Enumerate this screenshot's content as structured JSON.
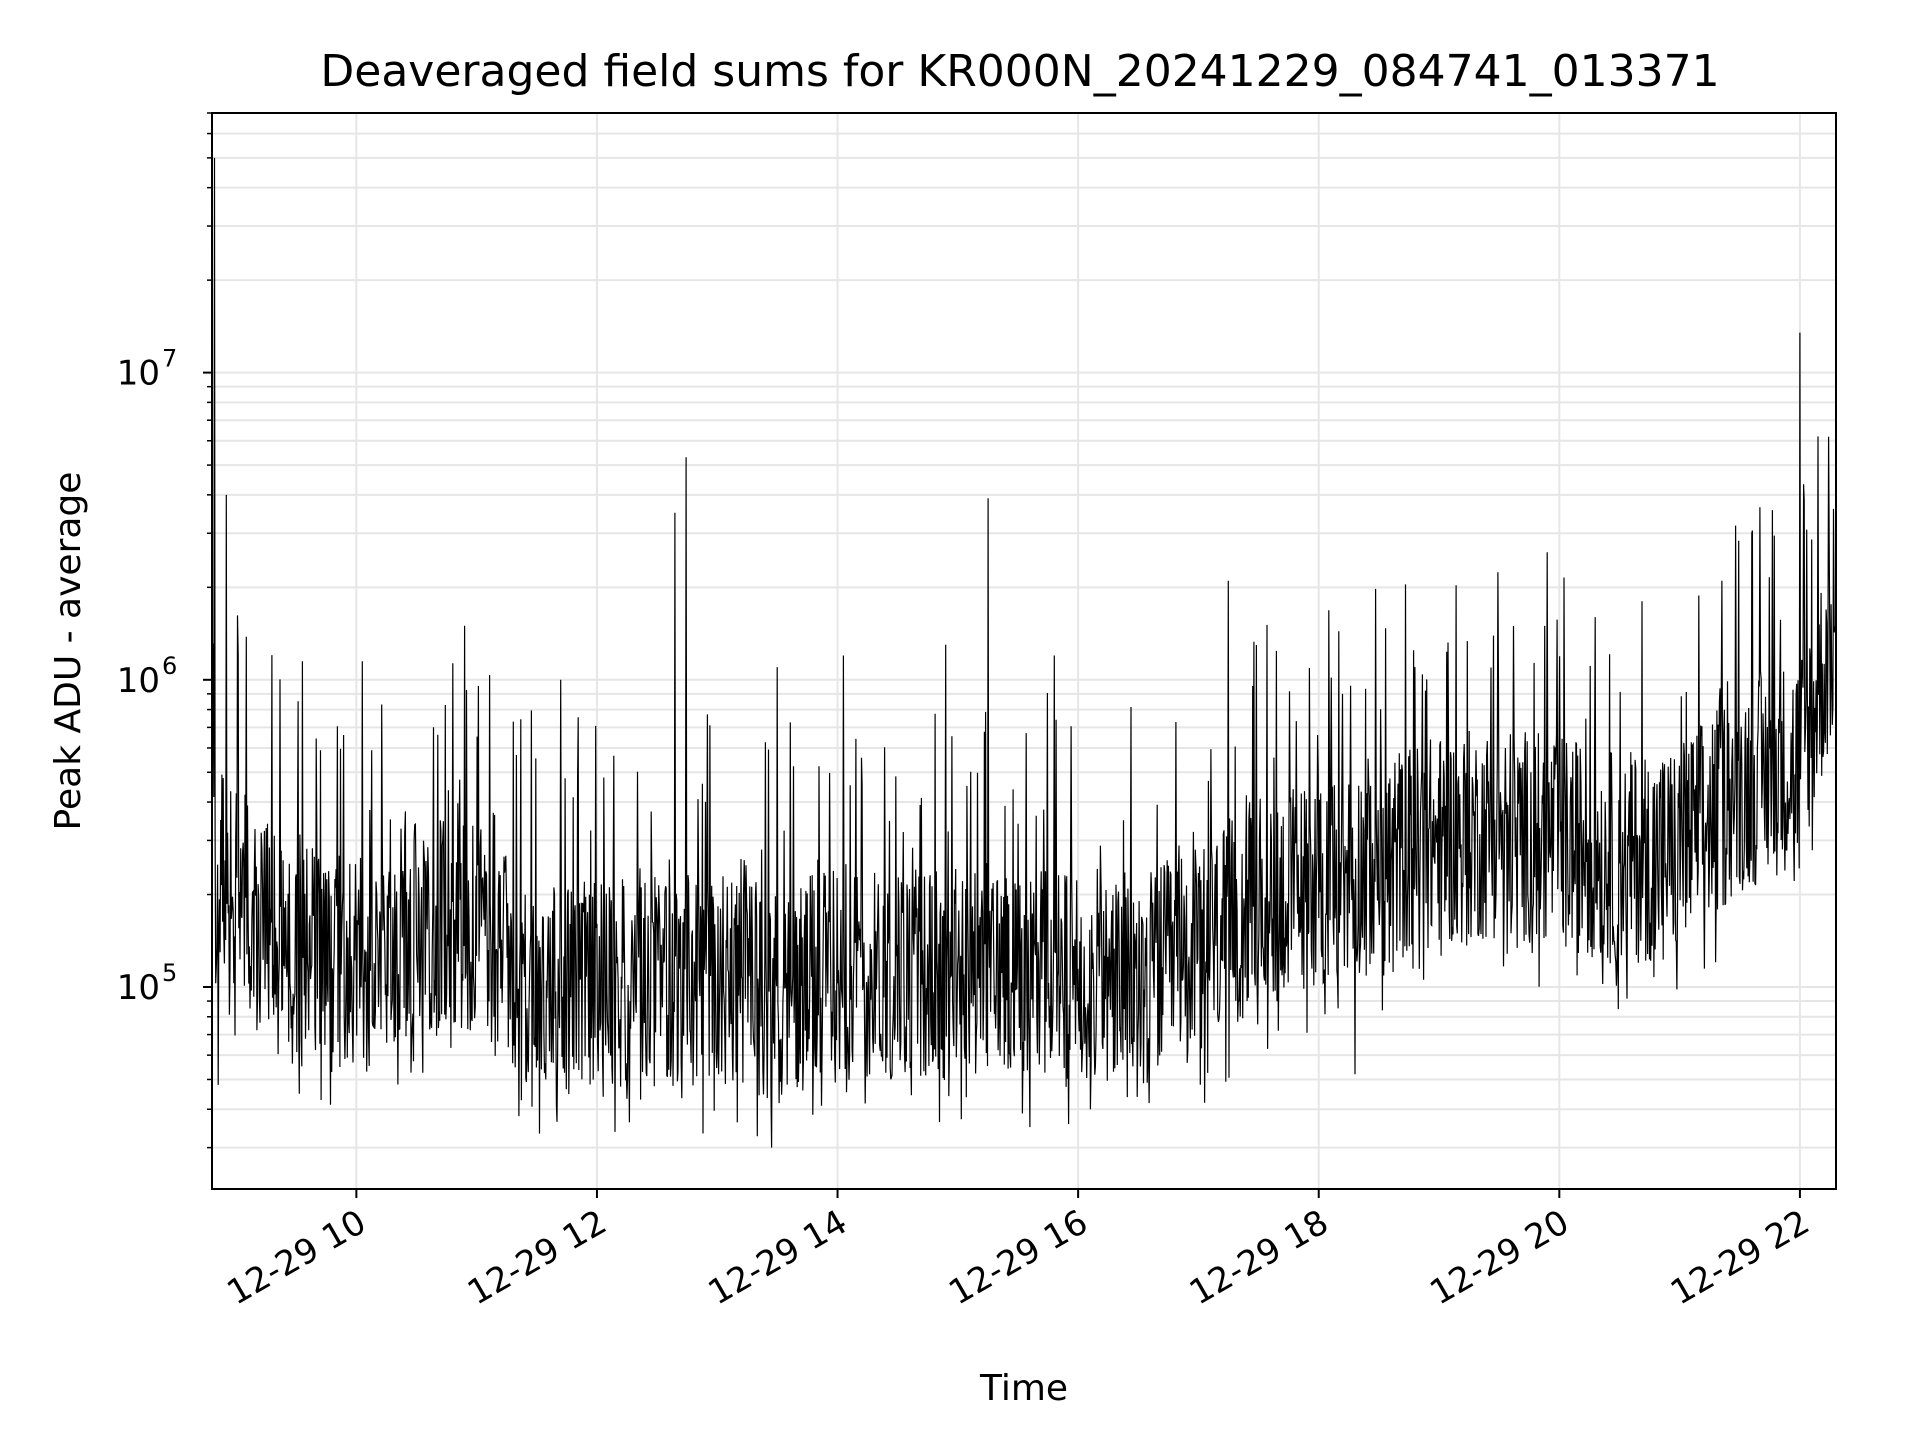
{
  "chart_data": {
    "type": "line",
    "title": "Deaveraged field sums for KR000N_20241229_084741_013371",
    "xlabel": "Time",
    "ylabel": "Peak ADU - average",
    "yscale": "log",
    "xlim_hours": [
      8.8,
      22.3
    ],
    "ylim": [
      22000,
      70000000
    ],
    "grid": true,
    "x_ticks": [
      {
        "hour": 10,
        "label": "12-29 10"
      },
      {
        "hour": 12,
        "label": "12-29 12"
      },
      {
        "hour": 14,
        "label": "12-29 14"
      },
      {
        "hour": 16,
        "label": "12-29 16"
      },
      {
        "hour": 18,
        "label": "12-29 18"
      },
      {
        "hour": 20,
        "label": "12-29 20"
      },
      {
        "hour": 22,
        "label": "12-29 22"
      }
    ],
    "y_ticks": [
      {
        "value": 100000,
        "base": "10",
        "exp": "5"
      },
      {
        "value": 1000000,
        "base": "10",
        "exp": "6"
      },
      {
        "value": 10000000,
        "base": "10",
        "exp": "7"
      }
    ],
    "series": [
      {
        "name": "Deaveraged field sums",
        "color": "#000000",
        "baseline_hours": [
          8.8,
          9.5,
          10.0,
          10.5,
          11.0,
          11.5,
          12.0,
          13.0,
          13.5,
          14.0,
          15.0,
          15.5,
          16.0,
          16.5,
          17.0,
          17.5,
          18.0,
          18.5,
          19.0,
          19.5,
          20.0,
          20.5,
          21.0,
          21.5,
          22.0,
          22.3
        ],
        "baseline_values": [
          250000,
          130000,
          120000,
          160000,
          150000,
          100000,
          100000,
          105000,
          95000,
          110000,
          110000,
          120000,
          110000,
          105000,
          130000,
          190000,
          220000,
          260000,
          300000,
          320000,
          300000,
          260000,
          280000,
          450000,
          550000,
          1500000
        ],
        "spikes": [
          {
            "hour": 8.82,
            "value": 50000000
          },
          {
            "hour": 8.92,
            "value": 4000000
          },
          {
            "hour": 9.02,
            "value": 1200000
          },
          {
            "hour": 9.55,
            "value": 1150000
          },
          {
            "hour": 10.05,
            "value": 1150000
          },
          {
            "hour": 10.9,
            "value": 1500000
          },
          {
            "hour": 11.7,
            "value": 1000000
          },
          {
            "hour": 12.65,
            "value": 3500000
          },
          {
            "hour": 12.74,
            "value": 5300000
          },
          {
            "hour": 13.5,
            "value": 1100000
          },
          {
            "hour": 14.05,
            "value": 1200000
          },
          {
            "hour": 14.9,
            "value": 1300000
          },
          {
            "hour": 15.25,
            "value": 3900000
          },
          {
            "hour": 15.8,
            "value": 1200000
          },
          {
            "hour": 17.25,
            "value": 2100000
          },
          {
            "hour": 18.2,
            "value": 900000
          },
          {
            "hour": 18.8,
            "value": 1100000
          },
          {
            "hour": 19.9,
            "value": 2600000
          },
          {
            "hour": 20.3,
            "value": 1600000
          },
          {
            "hour": 21.35,
            "value": 2100000
          },
          {
            "hour": 21.6,
            "value": 3000000
          },
          {
            "hour": 22.0,
            "value": 13500000
          },
          {
            "hour": 22.15,
            "value": 6200000
          },
          {
            "hour": 22.28,
            "value": 3600000
          }
        ],
        "dips": [
          {
            "hour": 8.85,
            "value": 48000
          },
          {
            "hour": 11.35,
            "value": 38000
          },
          {
            "hour": 13.45,
            "value": 30000
          },
          {
            "hour": 15.6,
            "value": 35000
          },
          {
            "hour": 16.1,
            "value": 40000
          },
          {
            "hour": 17.05,
            "value": 42000
          },
          {
            "hour": 18.3,
            "value": 52000
          }
        ]
      }
    ]
  }
}
